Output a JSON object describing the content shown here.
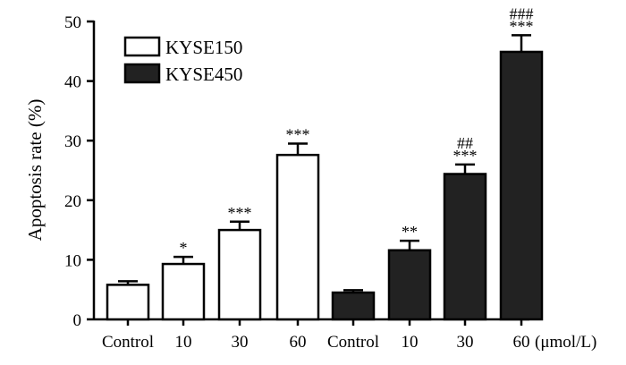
{
  "chart_data": {
    "type": "bar",
    "title": "",
    "xlabel": "",
    "ylabel": "Apoptosis rate (%)",
    "ylim": [
      0,
      50
    ],
    "yticks": [
      0,
      10,
      20,
      30,
      40,
      50
    ],
    "x_unit": "(μmol/L)",
    "legend_position": "top-left",
    "grid": false,
    "series": [
      {
        "name": "KYSE150",
        "color": "#ffffff",
        "categories": [
          "Control",
          "10",
          "30",
          "60"
        ],
        "values": [
          5.8,
          9.3,
          15.0,
          27.6
        ],
        "errors": [
          0.6,
          1.2,
          1.4,
          1.9
        ],
        "significance": [
          "",
          "*",
          "***",
          "***"
        ],
        "significance2": [
          "",
          "",
          "",
          ""
        ]
      },
      {
        "name": "KYSE450",
        "color": "#222222",
        "categories": [
          "Control",
          "10",
          "30",
          "60"
        ],
        "values": [
          4.5,
          11.6,
          24.4,
          44.9
        ],
        "errors": [
          0.4,
          1.6,
          1.6,
          2.8
        ],
        "significance": [
          "",
          "**",
          "***",
          "***"
        ],
        "significance2": [
          "",
          "",
          "##",
          "###"
        ]
      }
    ]
  }
}
